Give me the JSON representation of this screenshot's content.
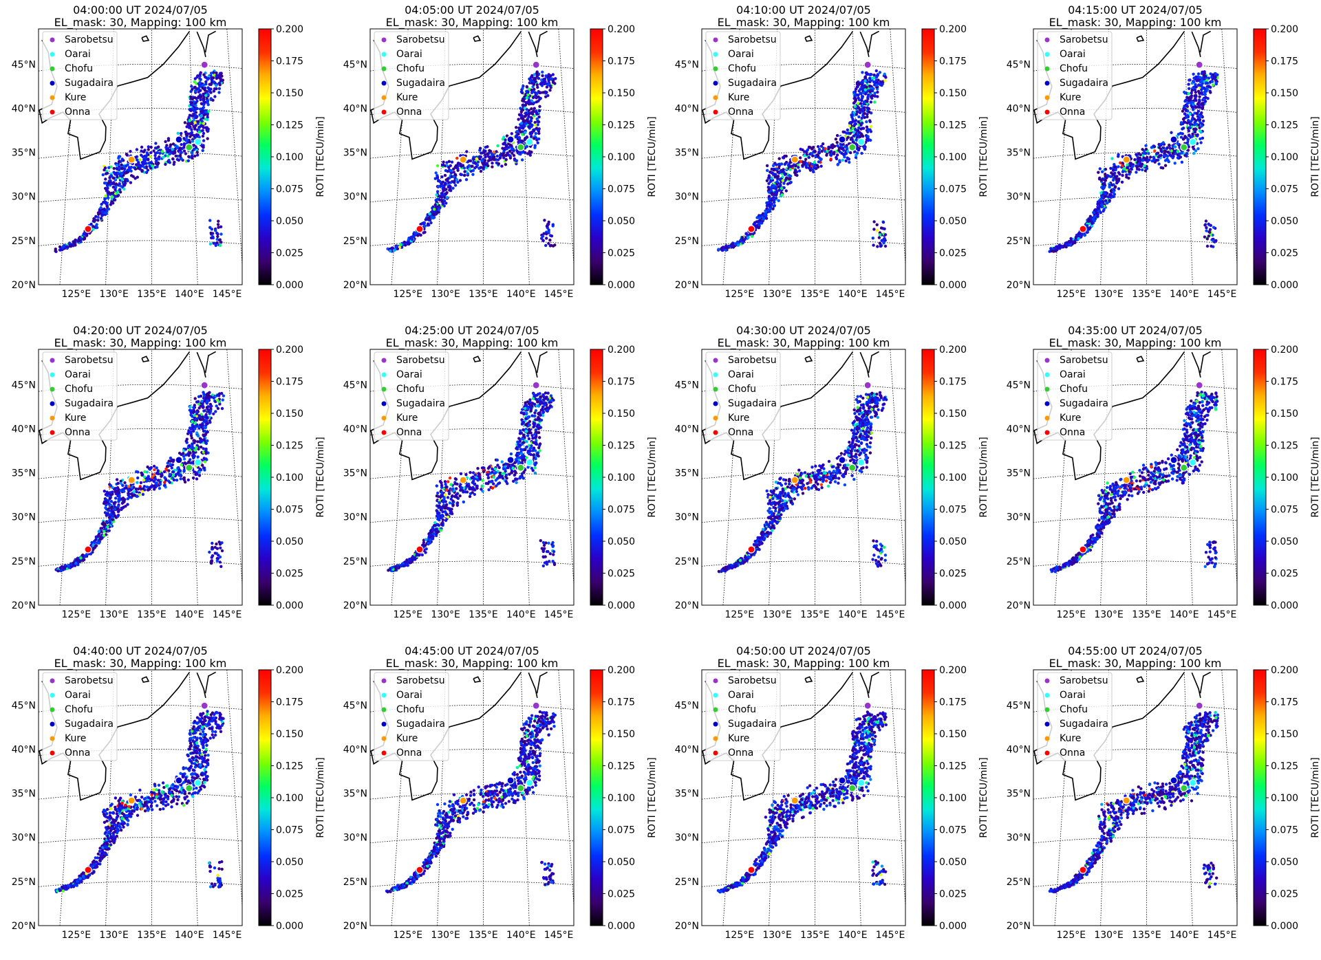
{
  "figure": {
    "colorbar": {
      "label": "ROTI [TECU/min]",
      "ticks": [
        "0.000",
        "0.025",
        "0.050",
        "0.075",
        "0.100",
        "0.125",
        "0.150",
        "0.175",
        "0.200"
      ],
      "vmin": 0.0,
      "vmax": 0.2,
      "colormap_stops": [
        "#000000",
        "#3a006e",
        "#2a00c8",
        "#0030ff",
        "#0090ff",
        "#00e8d8",
        "#00ff60",
        "#7cff00",
        "#ffff00",
        "#ffb000",
        "#ff3000",
        "#ff0000"
      ]
    },
    "axis": {
      "lon_ticks": [
        "125°E",
        "130°E",
        "135°E",
        "140°E",
        "145°E"
      ],
      "lat_ticks": [
        "20°N",
        "25°N",
        "30°N",
        "35°N",
        "40°N",
        "45°N"
      ],
      "lon_range": [
        120,
        147
      ],
      "lat_range": [
        20,
        49
      ]
    },
    "legend": {
      "placement": "upper-left",
      "stations": [
        {
          "name": "Sarobetsu",
          "color": "#9933cc",
          "lon": 141.8,
          "lat": 45.1
        },
        {
          "name": "Oarai",
          "color": "#33ffff",
          "lon": 140.6,
          "lat": 36.3
        },
        {
          "name": "Chofu",
          "color": "#33cc33",
          "lon": 139.5,
          "lat": 35.65
        },
        {
          "name": "Sugadaira",
          "color": "#0000cc",
          "lon": 138.3,
          "lat": 36.5
        },
        {
          "name": "Kure",
          "color": "#ff9900",
          "lon": 132.6,
          "lat": 34.2
        },
        {
          "name": "Onna",
          "color": "#ff0000",
          "lon": 127.8,
          "lat": 26.5
        }
      ]
    }
  },
  "chart_data": [
    {
      "type": "scatter",
      "title": "04:00:00 UT 2024/07/05",
      "subtitle": "EL_mask: 30, Mapping: 100 km",
      "seed": 11,
      "red_level": 0.4
    },
    {
      "type": "scatter",
      "title": "04:05:00 UT 2024/07/05",
      "subtitle": "EL_mask: 30, Mapping: 100 km",
      "seed": 23,
      "red_level": 0.5
    },
    {
      "type": "scatter",
      "title": "04:10:00 UT 2024/07/05",
      "subtitle": "EL_mask: 30, Mapping: 100 km",
      "seed": 37,
      "red_level": 0.6
    },
    {
      "type": "scatter",
      "title": "04:15:00 UT 2024/07/05",
      "subtitle": "EL_mask: 30, Mapping: 100 km",
      "seed": 41,
      "red_level": 0.9
    },
    {
      "type": "scatter",
      "title": "04:20:00 UT 2024/07/05",
      "subtitle": "EL_mask: 30, Mapping: 100 km",
      "seed": 53,
      "red_level": 1.2
    },
    {
      "type": "scatter",
      "title": "04:25:00 UT 2024/07/05",
      "subtitle": "EL_mask: 30, Mapping: 100 km",
      "seed": 67,
      "red_level": 0.9
    },
    {
      "type": "scatter",
      "title": "04:30:00 UT 2024/07/05",
      "subtitle": "EL_mask: 30, Mapping: 100 km",
      "seed": 71,
      "red_level": 1.1
    },
    {
      "type": "scatter",
      "title": "04:35:00 UT 2024/07/05",
      "subtitle": "EL_mask: 30, Mapping: 100 km",
      "seed": 83,
      "red_level": 1.2
    },
    {
      "type": "scatter",
      "title": "04:40:00 UT 2024/07/05",
      "subtitle": "EL_mask: 30, Mapping: 100 km",
      "seed": 97,
      "red_level": 0.9
    },
    {
      "type": "scatter",
      "title": "04:45:00 UT 2024/07/05",
      "subtitle": "EL_mask: 30, Mapping: 100 km",
      "seed": 101,
      "red_level": 0.6
    },
    {
      "type": "scatter",
      "title": "04:50:00 UT 2024/07/05",
      "subtitle": "EL_mask: 30, Mapping: 100 km",
      "seed": 113,
      "red_level": 0.5
    },
    {
      "type": "scatter",
      "title": "04:55:00 UT 2024/07/05",
      "subtitle": "EL_mask: 30, Mapping: 100 km",
      "seed": 127,
      "red_level": 0.6
    }
  ]
}
